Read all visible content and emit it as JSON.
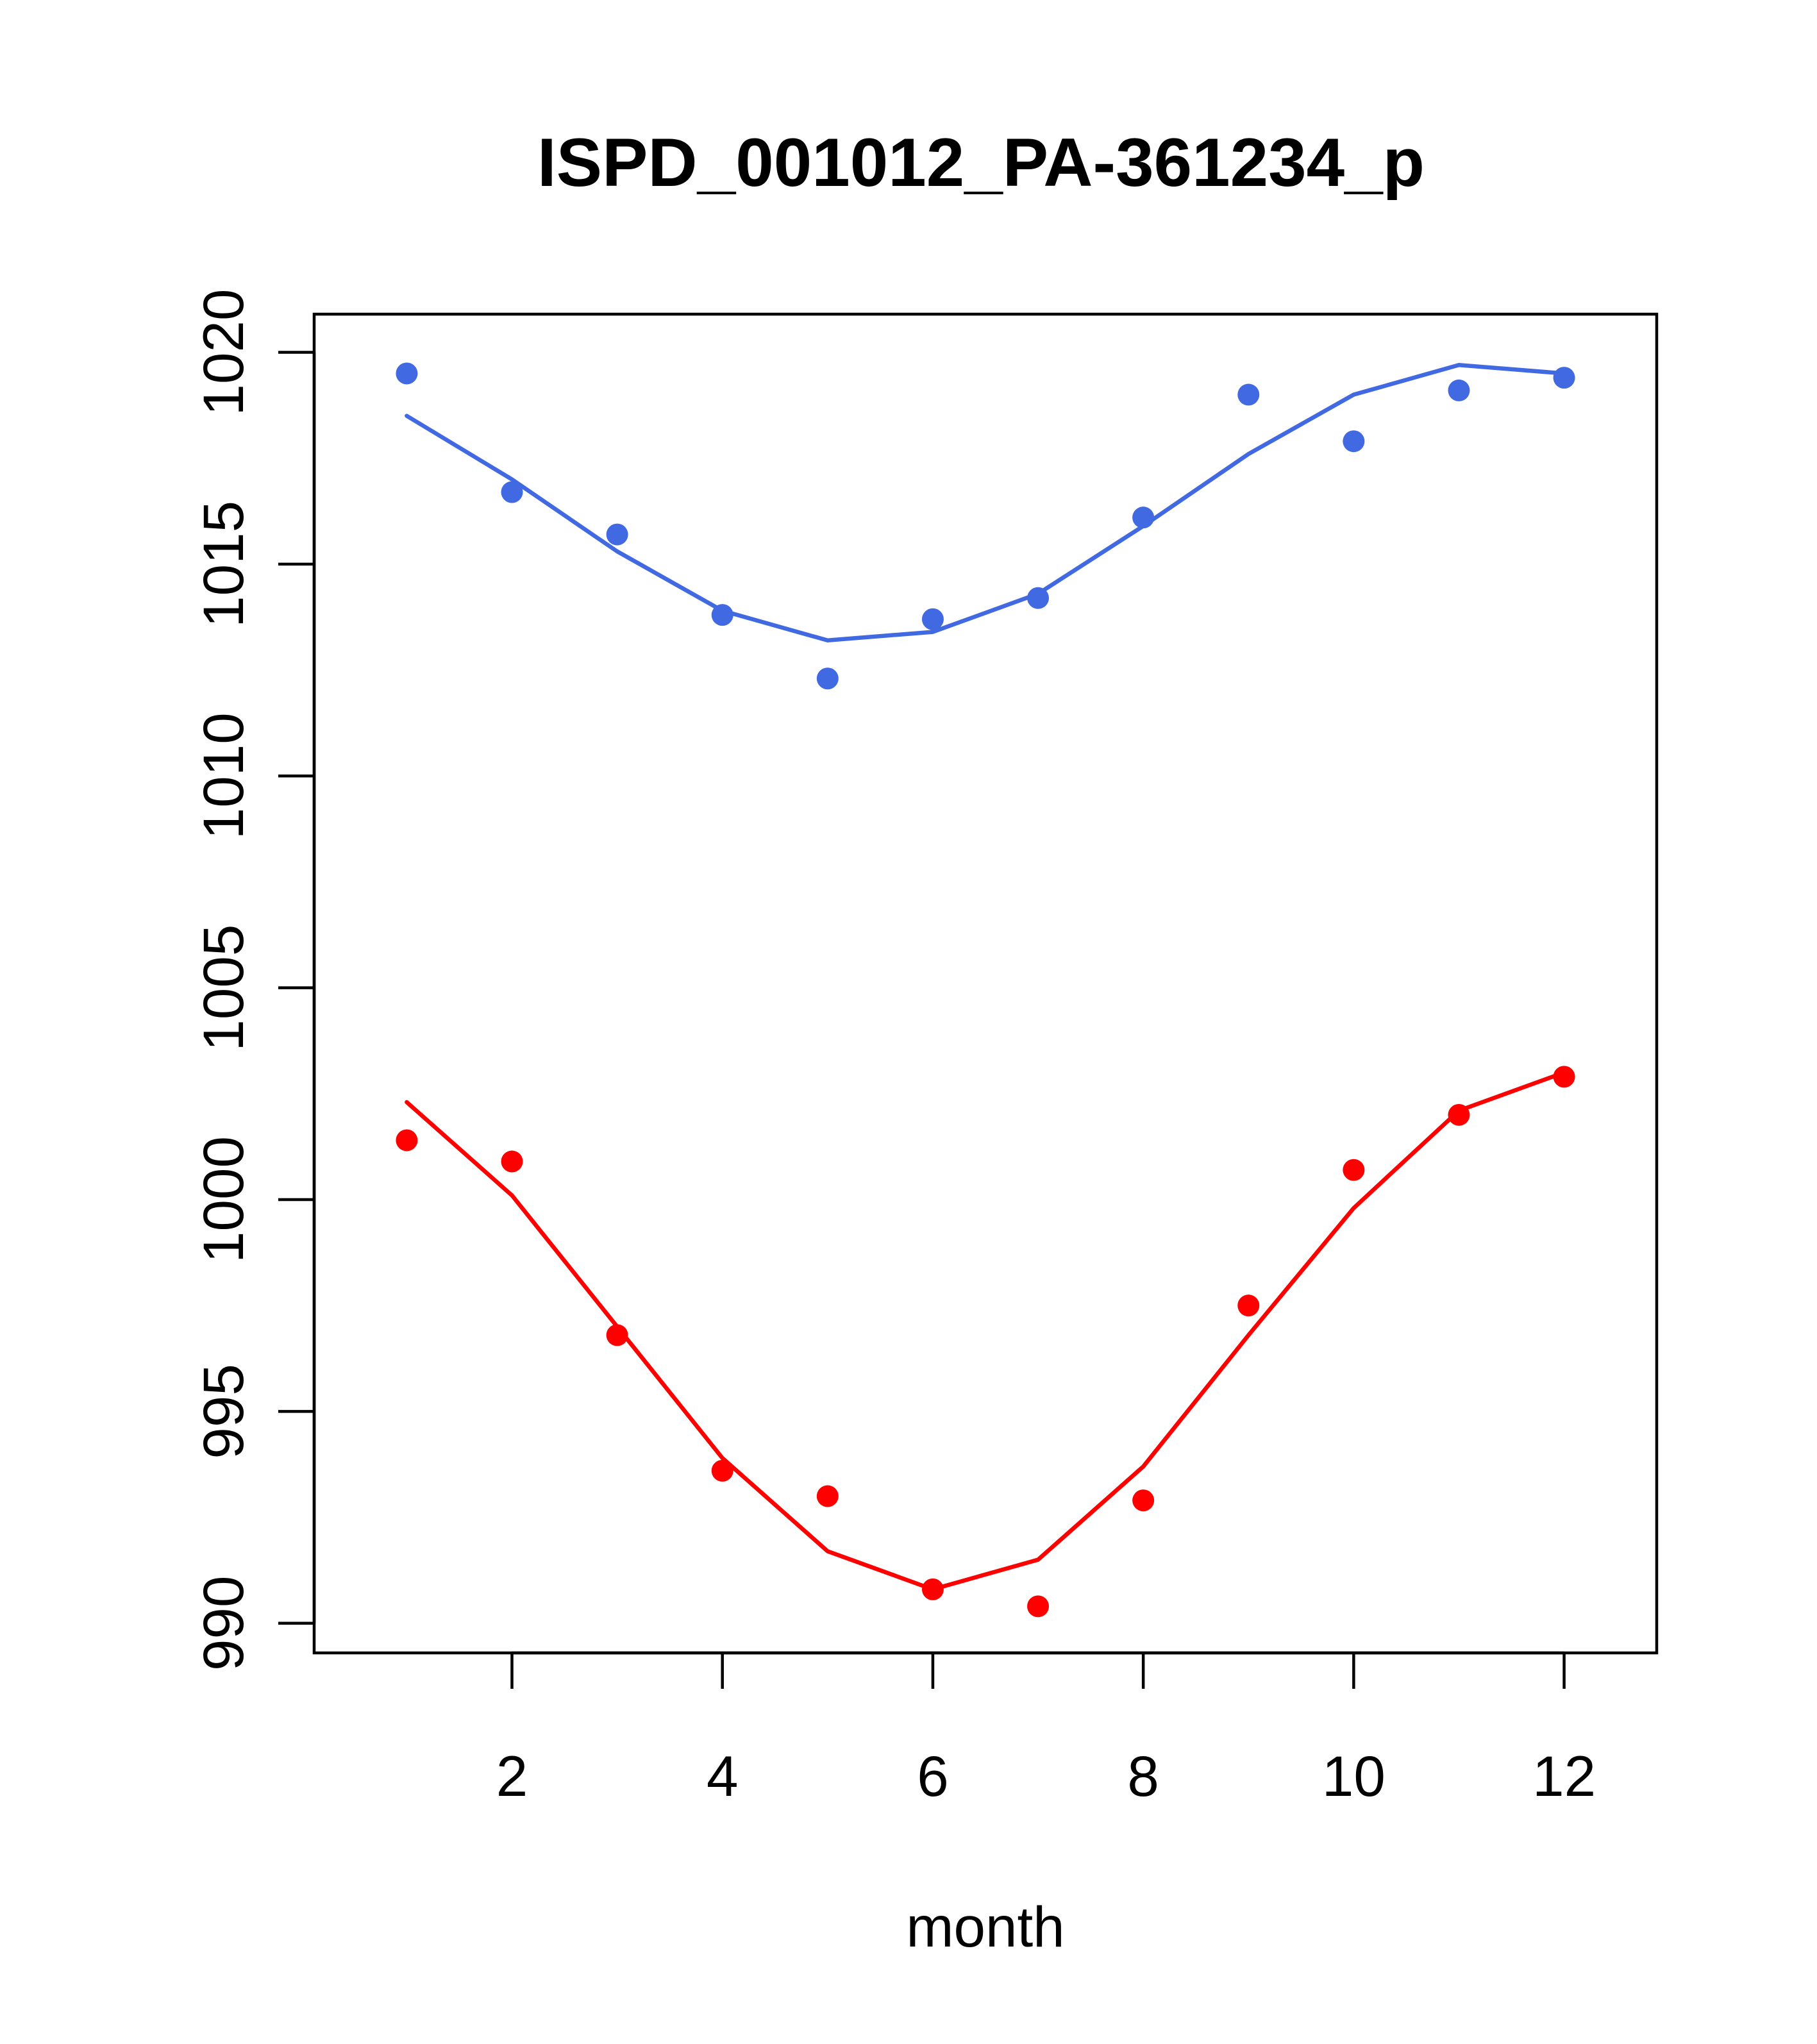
{
  "chart_data": {
    "type": "scatter",
    "title": "ISPD_001012_PA-361234_p",
    "xlabel": "month",
    "ylabel": "",
    "x": [
      1,
      2,
      3,
      4,
      5,
      6,
      7,
      8,
      9,
      10,
      11,
      12
    ],
    "x_ticks": [
      2,
      4,
      6,
      8,
      10,
      12
    ],
    "y_ticks": [
      990,
      995,
      1000,
      1005,
      1010,
      1015,
      1020
    ],
    "xlim": [
      0.12,
      12.88
    ],
    "ylim": [
      989.3,
      1020.9
    ],
    "grid": false,
    "legend": "none",
    "series": [
      {
        "color": "#4169E1",
        "points": [
          1019.5,
          1016.7,
          1015.7,
          1013.8,
          1012.3,
          1013.7,
          1014.2,
          1016.1,
          1019.0,
          1017.9,
          1019.1,
          1019.4
        ],
        "line": [
          1018.5,
          1017.0,
          1015.3,
          1013.9,
          1013.2,
          1013.4,
          1014.3,
          1015.9,
          1017.6,
          1019.0,
          1019.7,
          1019.5
        ]
      },
      {
        "color": "#FF0000",
        "points": [
          1001.4,
          1000.9,
          996.8,
          993.6,
          993.0,
          990.8,
          990.4,
          992.9,
          997.5,
          1000.7,
          1002.0,
          1002.9
        ],
        "line": [
          1002.3,
          1000.1,
          997.0,
          993.9,
          991.7,
          990.8,
          991.5,
          993.7,
          996.8,
          999.8,
          1002.1,
          1003.0
        ]
      }
    ]
  }
}
